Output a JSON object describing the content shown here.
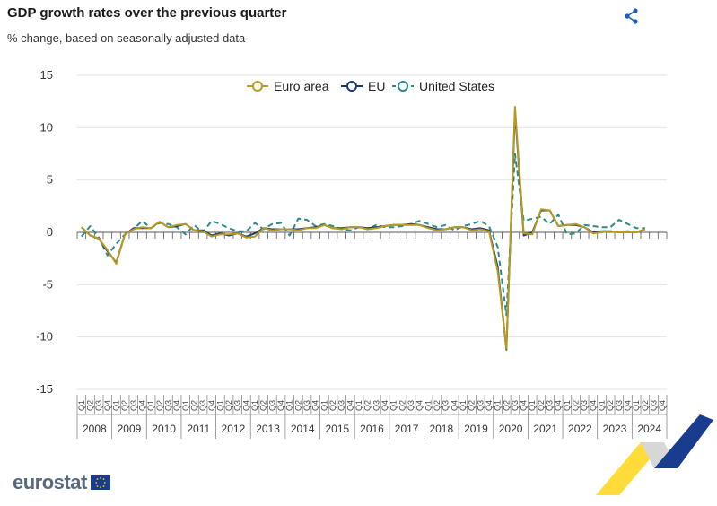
{
  "header": {
    "title": "GDP growth rates over the previous quarter",
    "subtitle": "% change, based on seasonally adjusted data"
  },
  "icons": {
    "share": "share-icon"
  },
  "brand": {
    "logo_text": "eurostat",
    "blue": "#1a3c8f",
    "yellow": "#ffcc00"
  },
  "chart_data": {
    "type": "line",
    "title": "GDP growth rates over the previous quarter",
    "subtitle": "% change, based on seasonally adjusted data",
    "ylim": [
      -15,
      15
    ],
    "yticks": [
      15,
      10,
      5,
      0,
      -5,
      -10,
      -15
    ],
    "years": [
      "2008",
      "2009",
      "2010",
      "2011",
      "2012",
      "2013",
      "2014",
      "2015",
      "2016",
      "2017",
      "2018",
      "2019",
      "2020",
      "2021",
      "2022",
      "2023",
      "2024"
    ],
    "quarters": [
      "Q1",
      "Q2",
      "Q3",
      "Q4"
    ],
    "legend_position": "top-center",
    "series": [
      {
        "name": "Euro area",
        "color": "#b89a1e",
        "dash": false,
        "values": [
          0.5,
          -0.3,
          -0.6,
          -1.7,
          -3.0,
          -0.2,
          0.3,
          0.5,
          0.4,
          1.0,
          0.5,
          0.7,
          0.8,
          0.2,
          0.1,
          -0.4,
          -0.2,
          -0.2,
          -0.1,
          -0.5,
          -0.4,
          0.4,
          0.2,
          0.3,
          0.3,
          0.2,
          0.4,
          0.4,
          0.7,
          0.4,
          0.3,
          0.5,
          0.5,
          0.3,
          0.4,
          0.6,
          0.7,
          0.7,
          0.7,
          0.7,
          0.4,
          0.2,
          0.3,
          0.5,
          0.5,
          0.2,
          0.3,
          0.1,
          -3.7,
          -11.1,
          12.0,
          -0.1,
          -0.2,
          2.2,
          2.1,
          0.6,
          0.7,
          0.8,
          0.5,
          -0.1,
          0.0,
          0.1,
          0.0,
          0.0,
          0.0,
          0.3
        ]
      },
      {
        "name": "EU",
        "color": "#1a3c6e",
        "dash": false,
        "values": [
          0.5,
          -0.3,
          -0.6,
          -1.8,
          -2.9,
          -0.2,
          0.4,
          0.4,
          0.4,
          1.0,
          0.5,
          0.6,
          0.8,
          0.2,
          0.2,
          -0.3,
          -0.1,
          -0.3,
          -0.1,
          -0.4,
          -0.1,
          0.4,
          0.3,
          0.3,
          0.3,
          0.3,
          0.4,
          0.5,
          0.7,
          0.4,
          0.4,
          0.5,
          0.5,
          0.4,
          0.5,
          0.6,
          0.7,
          0.7,
          0.8,
          0.7,
          0.5,
          0.3,
          0.3,
          0.5,
          0.5,
          0.3,
          0.4,
          0.2,
          -3.3,
          -11.2,
          11.6,
          -0.3,
          0.0,
          2.1,
          2.1,
          0.6,
          0.7,
          0.7,
          0.5,
          0.0,
          0.1,
          0.1,
          0.0,
          0.1,
          0.0,
          0.3
        ]
      },
      {
        "name": "United States",
        "color": "#2e8a8a",
        "dash": true,
        "values": [
          -0.4,
          0.6,
          -0.5,
          -2.2,
          -1.1,
          -0.2,
          0.3,
          1.1,
          0.4,
          0.9,
          0.8,
          0.5,
          -0.2,
          0.7,
          0.0,
          1.1,
          0.8,
          0.4,
          0.1,
          0.1,
          0.9,
          0.3,
          0.8,
          0.9,
          -0.3,
          1.3,
          1.2,
          0.6,
          0.8,
          0.6,
          0.3,
          0.2,
          0.5,
          0.3,
          0.7,
          0.5,
          0.5,
          0.6,
          0.8,
          1.1,
          0.8,
          0.5,
          0.7,
          0.2,
          0.6,
          0.8,
          1.1,
          0.6,
          -1.4,
          -7.9,
          7.5,
          1.1,
          1.3,
          1.5,
          0.8,
          1.7,
          -0.2,
          -0.1,
          0.7,
          0.6,
          0.5,
          0.5,
          1.2,
          0.8,
          0.4,
          0.4
        ]
      }
    ]
  }
}
